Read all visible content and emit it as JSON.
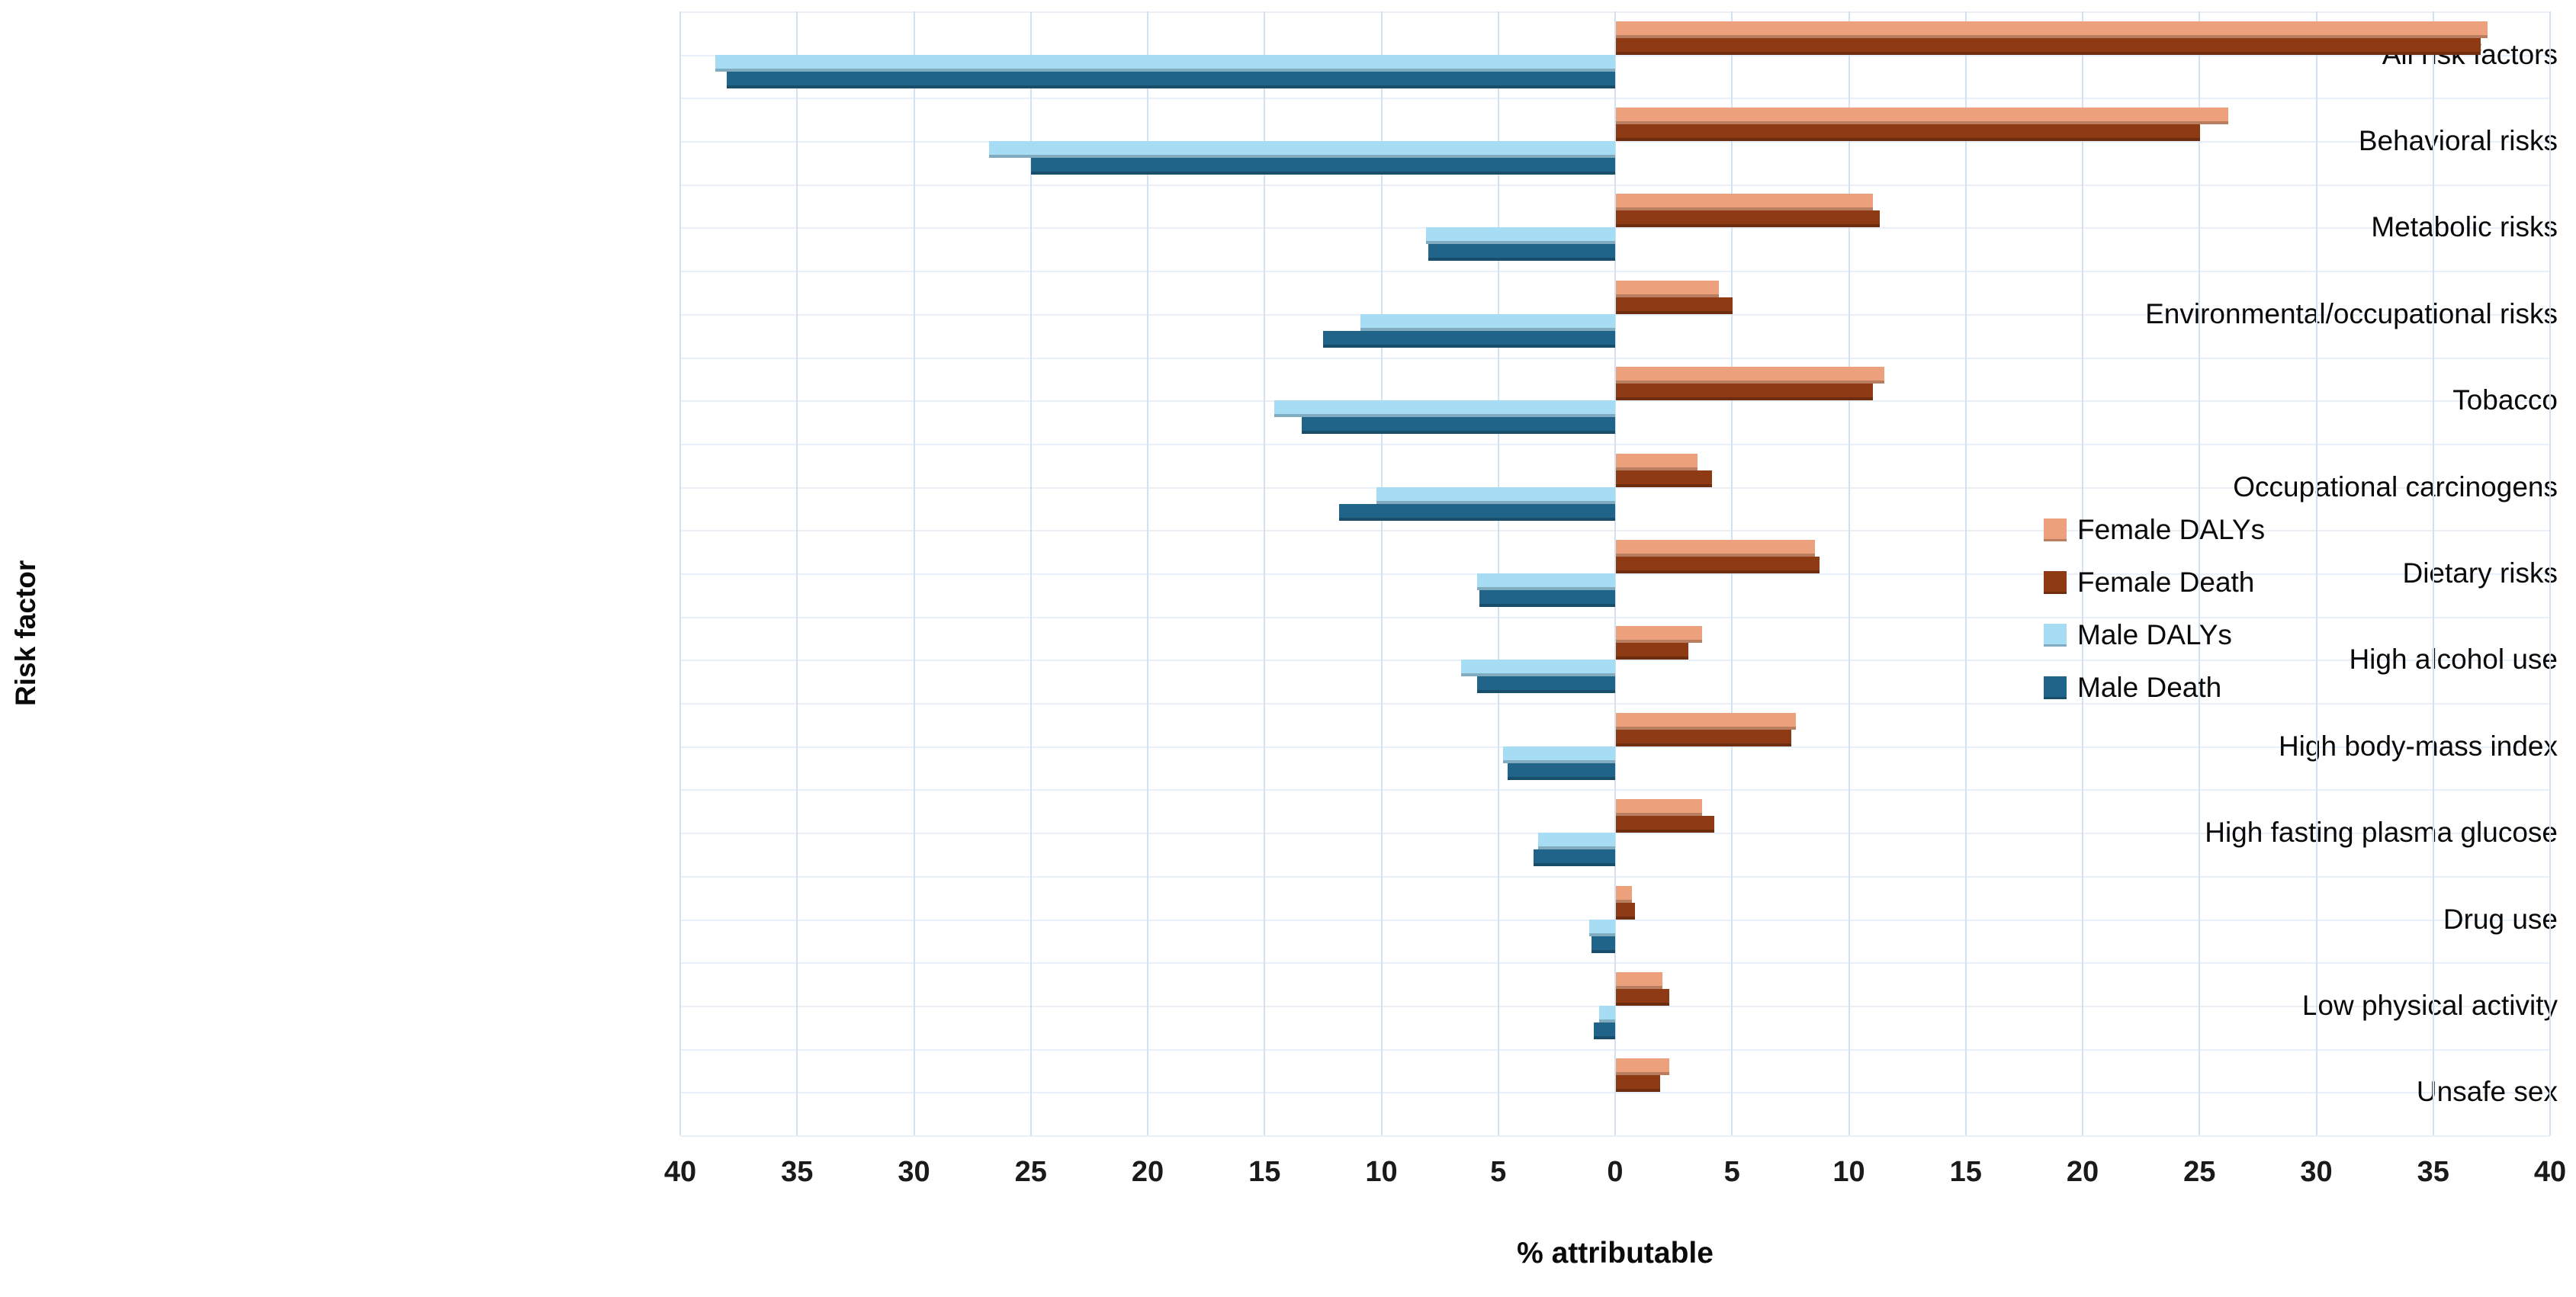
{
  "chart_data": {
    "type": "bar",
    "orientation": "horizontal-diverging",
    "xlabel": "% attributable",
    "ylabel": "Risk factor",
    "x_axis": {
      "range": [
        -40,
        40
      ],
      "tick_values": [
        -40,
        -35,
        -30,
        -25,
        -20,
        -15,
        -10,
        -5,
        0,
        5,
        10,
        15,
        20,
        25,
        30,
        35,
        40
      ],
      "tick_labels": [
        "40",
        "35",
        "30",
        "25",
        "20",
        "15",
        "10",
        "5",
        "0",
        "5",
        "10",
        "15",
        "20",
        "25",
        "30",
        "35",
        "40"
      ],
      "gridlines": true
    },
    "categories": [
      "All risk factors",
      "Behavioral risks",
      "Metabolic risks",
      "Environmental/occupational risks",
      "Tobacco",
      "Occupational carcinogens",
      "Dietary risks",
      "High alcohol use",
      "High body-mass index",
      "High fasting plasma glucose",
      "Drug use",
      "Low physical activity",
      "Unsafe sex"
    ],
    "series": [
      {
        "name": "Female DALYs",
        "side": "right",
        "color": "#EDA07C",
        "values": [
          37.3,
          26.2,
          11.0,
          4.4,
          11.5,
          3.5,
          8.5,
          3.7,
          7.7,
          3.7,
          0.7,
          2.0,
          2.3
        ]
      },
      {
        "name": "Female Death",
        "side": "right",
        "color": "#8E3A14",
        "values": [
          37.0,
          25.0,
          11.3,
          5.0,
          11.0,
          4.1,
          8.7,
          3.1,
          7.5,
          4.2,
          0.8,
          2.3,
          1.9
        ]
      },
      {
        "name": "Male DALYs",
        "side": "left",
        "color": "#A6DCF4",
        "values": [
          38.5,
          26.8,
          8.1,
          10.9,
          14.6,
          10.2,
          5.9,
          6.6,
          4.8,
          3.3,
          1.1,
          0.7,
          0.0
        ]
      },
      {
        "name": "Male Death",
        "side": "left",
        "color": "#20648A",
        "values": [
          38.0,
          25.0,
          8.0,
          12.5,
          13.4,
          11.8,
          5.8,
          5.9,
          4.6,
          3.5,
          1.0,
          0.9,
          0.0
        ]
      }
    ],
    "legend": {
      "position": "middle-right",
      "entries": [
        "Female DALYs",
        "Female Death",
        "Male DALYs",
        "Male Death"
      ]
    }
  }
}
